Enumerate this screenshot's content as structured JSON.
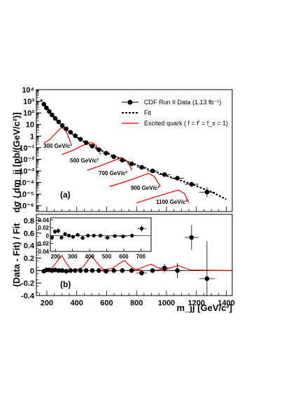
{
  "chart_data": [
    {
      "panel": "(a)",
      "type": "scatter",
      "ylabel": "dσ / dm_jj [pb/(GeV/c²)]",
      "xlim": [
        130,
        1440
      ],
      "ylim_log10": [
        -6.5,
        4
      ],
      "log_y": true,
      "y_tick_labels": [
        "10⁴",
        "10³",
        "10²",
        "10",
        "1",
        "10⁻¹",
        "10⁻²",
        "10⁻³",
        "10⁻⁴",
        "10⁻⁵",
        "10⁻⁶"
      ],
      "legend": {
        "placement": "top-right",
        "entries": [
          "CDF Run II Data (1.13 fb⁻¹)",
          "Fit",
          "Excited quark ( f = f' = f_s = 1)"
        ]
      },
      "series": [
        {
          "name": "CDF Run II Data (1.13 fb⁻¹)",
          "style": "points",
          "x": [
            180,
            197,
            216,
            235,
            256,
            279,
            303,
            330,
            359,
            390,
            425,
            463,
            504,
            548,
            596,
            648,
            705,
            767,
            834,
            907,
            987,
            1073,
            1168,
            1271
          ],
          "log10_y": [
            2.75,
            2.43,
            2.12,
            1.82,
            1.52,
            1.22,
            0.92,
            0.62,
            0.33,
            0.03,
            -0.27,
            -0.57,
            -0.87,
            -1.17,
            -1.47,
            -1.78,
            -2.08,
            -2.39,
            -2.69,
            -3.0,
            -3.32,
            -3.63,
            -4.15,
            -4.83
          ],
          "x_err": [
            9,
            9,
            10,
            10,
            11,
            12,
            12,
            13,
            14,
            16,
            17,
            19,
            20,
            22,
            24,
            26,
            28,
            31,
            34,
            36,
            40,
            43,
            47,
            52
          ],
          "log10_y_err": [
            0,
            0,
            0,
            0,
            0,
            0,
            0,
            0,
            0,
            0,
            0,
            0,
            0,
            0,
            0,
            0,
            0,
            0,
            0,
            0.05,
            0.08,
            0.12,
            0.22,
            0.45
          ]
        },
        {
          "name": "Fit",
          "style": "dashed-line",
          "x": [
            160,
            200,
            250,
            300,
            350,
            400,
            500,
            600,
            700,
            800,
            900,
            1000,
            1100,
            1200,
            1300,
            1400
          ],
          "log10_y": [
            3.15,
            2.46,
            1.6,
            0.92,
            0.37,
            -0.1,
            -0.85,
            -1.46,
            -2.0,
            -2.5,
            -2.97,
            -3.42,
            -3.85,
            -4.3,
            -4.8,
            -5.45
          ]
        }
      ],
      "signals": [
        {
          "label": "300 GeV/c²",
          "x": [
            180,
            220,
            260,
            300,
            330,
            360
          ],
          "log10_y": [
            -0.6,
            -0.3,
            0.25,
            0.75,
            0.4,
            -0.6
          ]
        },
        {
          "label": "500 GeV/c²",
          "x": [
            300,
            380,
            440,
            500,
            530,
            560
          ],
          "log10_y": [
            -1.6,
            -1.2,
            -0.8,
            -0.55,
            -0.8,
            -1.6
          ]
        },
        {
          "label": "700 GeV/c²",
          "x": [
            470,
            560,
            640,
            700,
            740,
            770
          ],
          "log10_y": [
            -2.95,
            -2.55,
            -2.15,
            -1.85,
            -2.2,
            -2.95
          ]
        },
        {
          "label": "900 GeV/c²",
          "x": [
            620,
            720,
            820,
            880,
            920,
            960
          ],
          "log10_y": [
            -4.35,
            -3.95,
            -3.5,
            -3.2,
            -3.5,
            -4.35
          ]
        },
        {
          "label": "1100 GeV/c²",
          "x": [
            800,
            900,
            1000,
            1080,
            1120,
            1150
          ],
          "log10_y": [
            -5.75,
            -5.35,
            -4.95,
            -4.65,
            -4.95,
            -5.75
          ]
        }
      ]
    },
    {
      "panel": "(b)",
      "type": "scatter",
      "xlabel": "m_jj [GeV/c²]",
      "ylabel": "(Data - Fit) / Fit",
      "xlim": [
        130,
        1440
      ],
      "ylim": [
        -0.4,
        0.9
      ],
      "x_ticks": [
        200,
        400,
        600,
        800,
        1000,
        1200,
        1400
      ],
      "y_ticks": [
        -0.4,
        -0.2,
        0,
        0.2,
        0.4,
        0.6,
        0.8
      ],
      "series": [
        {
          "name": "residuals",
          "style": "points",
          "x": [
            180,
            197,
            216,
            235,
            256,
            279,
            303,
            330,
            359,
            390,
            425,
            463,
            504,
            548,
            596,
            648,
            705,
            767,
            834,
            907,
            987,
            1073,
            1168,
            1271
          ],
          "y": [
            -0.01,
            0.01,
            0.01,
            0.0,
            0.01,
            0.0,
            0.0,
            -0.01,
            0.0,
            0.0,
            0.0,
            0.0,
            0.0,
            0.0,
            -0.01,
            0.0,
            0.0,
            0.0,
            -0.04,
            0.0,
            0.04,
            0.0,
            0.53,
            -0.13
          ],
          "y_err": [
            0.01,
            0.01,
            0.01,
            0.01,
            0.01,
            0.01,
            0.01,
            0.01,
            0.01,
            0.01,
            0.01,
            0.01,
            0.01,
            0.01,
            0.01,
            0.01,
            0.01,
            0.02,
            0.02,
            0.04,
            0.07,
            0.12,
            0.2,
            0.6
          ]
        }
      ],
      "signals": [
        {
          "x": [
            180,
            230,
            270,
            300,
            330,
            360,
            400
          ],
          "y": [
            0.0,
            0.03,
            0.15,
            0.24,
            0.12,
            0.02,
            0.0
          ]
        },
        {
          "x": [
            380,
            440,
            480,
            500,
            530,
            570,
            620
          ],
          "y": [
            0.0,
            0.05,
            0.18,
            0.24,
            0.14,
            0.03,
            0.0
          ]
        },
        {
          "x": [
            560,
            640,
            690,
            720,
            750,
            790,
            840
          ],
          "y": [
            0.0,
            0.04,
            0.12,
            0.16,
            0.09,
            0.02,
            0.0
          ]
        },
        {
          "x": [
            740,
            820,
            870,
            900,
            930,
            970,
            1020
          ],
          "y": [
            0.0,
            0.03,
            0.08,
            0.1,
            0.06,
            0.02,
            0.0
          ]
        },
        {
          "x": [
            900,
            990,
            1050,
            1080,
            1110,
            1160,
            1440
          ],
          "y": [
            0.0,
            0.02,
            0.06,
            0.08,
            0.05,
            0.01,
            0.0
          ]
        }
      ],
      "inset": {
        "xlim": [
          170,
          760
        ],
        "ylim": [
          -0.04,
          0.045
        ],
        "x_ticks": [
          200,
          300,
          400,
          500,
          600,
          700
        ],
        "y_ticks": [
          -0.04,
          -0.02,
          0,
          0.02,
          0.04
        ],
        "series": [
          {
            "x": [
              180,
              197,
              216,
              235,
              256,
              279,
              303,
              330,
              359,
              390,
              425,
              463,
              504,
              548,
              596,
              648,
              705
            ],
            "y": [
              -0.005,
              0.01,
              0.012,
              -0.005,
              0.004,
              0.0,
              -0.003,
              0.002,
              -0.006,
              0.0,
              0.0,
              0.0,
              -0.005,
              -0.001,
              -0.002,
              0.0,
              0.018
            ],
            "y_err": [
              0.006,
              0.006,
              0.007,
              0.005,
              0.004,
              0.004,
              0.004,
              0.003,
              0.003,
              0.003,
              0.003,
              0.003,
              0.003,
              0.003,
              0.004,
              0.005,
              0.008
            ]
          }
        ]
      }
    }
  ],
  "labels": {
    "panel_a": "(a)",
    "panel_b": "(b)",
    "xlabel": "m_jj [GeV/c²]",
    "ylabel_a": "dσ / dm_jj [pb/(GeV/c²)]",
    "ylabel_b": "(Data - Fit) / Fit",
    "legend_data": "CDF Run II Data (1.13 fb⁻¹)",
    "legend_fit": "Fit",
    "legend_signal": "Excited quark ( f = f' = f_s = 1)",
    "m300": "300 GeV/c²",
    "m500": "500 GeV/c²",
    "m700": "700 GeV/c²",
    "m900": "900 GeV/c²",
    "m1100": "1100 GeV/c²"
  }
}
